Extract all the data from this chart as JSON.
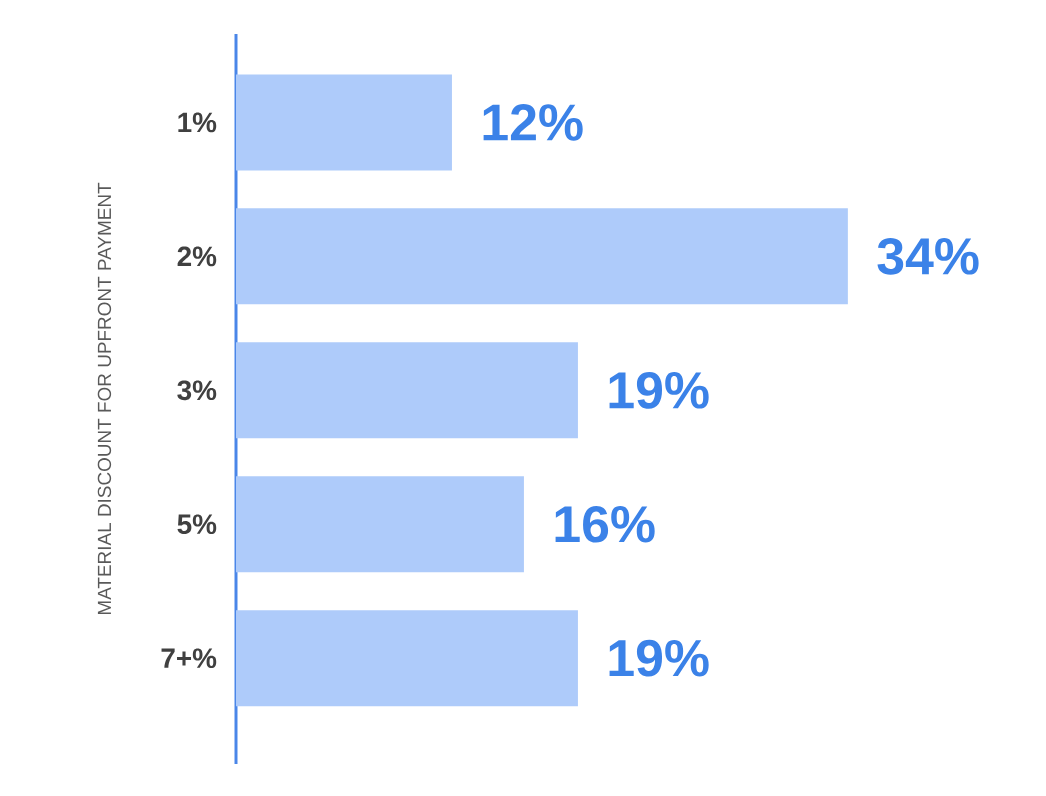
{
  "chart_data": {
    "type": "bar",
    "orientation": "horizontal",
    "ylabel": "MATERIAL DISCOUNT FOR UPFRONT PAYMENT",
    "categories": [
      "1%",
      "2%",
      "3%",
      "5%",
      "7+%"
    ],
    "values": [
      12,
      34,
      19,
      16,
      19
    ],
    "value_labels": [
      "12%",
      "34%",
      "19%",
      "16%",
      "19%"
    ],
    "color": "#aecbfa"
  }
}
